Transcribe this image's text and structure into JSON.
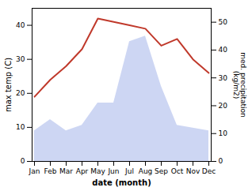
{
  "chart_data": {
    "type": "line",
    "categories": [
      "Jan",
      "Feb",
      "Mar",
      "Apr",
      "May",
      "Jun",
      "Jul",
      "Aug",
      "Sep",
      "Oct",
      "Nov",
      "Dec"
    ],
    "xlabel": "date (month)",
    "ylabel": "max temp (C)",
    "y2label": "med. precipitation\n(kg/m2)",
    "ylim": [
      0,
      45
    ],
    "yticks": [
      0,
      10,
      20,
      30,
      40
    ],
    "y2lim": [
      0,
      55
    ],
    "y2ticks": [
      0,
      10,
      20,
      30,
      40,
      50
    ],
    "grid": false,
    "series": [
      {
        "type": "area",
        "axis": "y2",
        "color": "#b8c4ee",
        "values": [
          11,
          15,
          11,
          13,
          21,
          21,
          43,
          45,
          27,
          13,
          12,
          11
        ]
      },
      {
        "type": "line",
        "color": "#c0392b",
        "values": [
          19,
          24,
          28,
          33,
          42,
          41,
          40,
          39,
          34,
          36,
          30,
          26
        ]
      }
    ]
  }
}
